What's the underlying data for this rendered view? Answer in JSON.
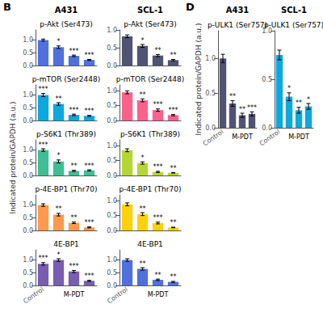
{
  "chart_data": [
    {
      "type": "bar",
      "title": "p-Akt (Ser473)",
      "subtitle": "A431",
      "annotations": [
        {
          "text": "B"
        }
      ],
      "categories": [
        null,
        null,
        null,
        null
      ],
      "values": [
        1.0,
        0.72,
        0.38,
        0.22
      ],
      "errors": [
        0.04,
        0.05,
        0.03,
        0.02
      ],
      "significance": [
        null,
        "*",
        "***",
        "***"
      ],
      "ylim": [
        0,
        1.4
      ],
      "yticks": [
        {
          "value": 0,
          "label": "0.0"
        },
        {
          "value": 0.5,
          "label": "0.5"
        },
        {
          "value": 1.0,
          "label": "1.0"
        }
      ],
      "grid": false,
      "tick_labels": "y"
    },
    {
      "type": "bar",
      "title": "p-Akt (Ser473)",
      "subtitle": "SCL-1",
      "categories": [
        null,
        null,
        null,
        null
      ],
      "values": [
        0.82,
        0.55,
        0.28,
        0.15
      ],
      "errors": [
        0.04,
        0.04,
        0.03,
        0.02
      ],
      "significance": [
        null,
        "*",
        "**",
        "**"
      ],
      "ylim": [
        0,
        1.0
      ],
      "yticks": [
        {
          "value": 0,
          "label": "0.0"
        },
        {
          "value": 0.5,
          "label": "0.5"
        },
        {
          "value": 1.0,
          "label": "1.0"
        }
      ],
      "grid": false,
      "tick_labels": "y"
    },
    {
      "type": "bar",
      "title": "p-mTOR (Ser2448)",
      "categories": [
        null,
        null,
        null,
        null
      ],
      "values": [
        1.0,
        0.65,
        0.22,
        0.18
      ],
      "errors": [
        0.06,
        0.05,
        0.03,
        0.02
      ],
      "significance": [
        "***",
        "**",
        "***",
        "***"
      ],
      "ylim": [
        0,
        1.4
      ],
      "yticks": [
        {
          "value": 0,
          "label": "0.0"
        },
        {
          "value": 0.5,
          "label": "0.5"
        },
        {
          "value": 1.0,
          "label": "1.0"
        }
      ],
      "grid": false,
      "tick_labels": "y"
    },
    {
      "type": "bar",
      "title": "p-mTOR (Ser2448)",
      "categories": [
        null,
        null,
        null,
        null
      ],
      "values": [
        0.95,
        0.68,
        0.35,
        0.18
      ],
      "errors": [
        0.05,
        0.05,
        0.04,
        0.02
      ],
      "significance": [
        null,
        "**",
        "***",
        "***"
      ],
      "ylim": [
        0,
        1.2
      ],
      "yticks": [
        {
          "value": 0,
          "label": "0.0"
        },
        {
          "value": 0.5,
          "label": "0.5"
        },
        {
          "value": 1.0,
          "label": "1.0"
        }
      ],
      "grid": false,
      "tick_labels": "y"
    },
    {
      "type": "bar",
      "title": "p-S6K1 (Thr389)",
      "ylabel": "Indicated protein/GAPDH (a.u.)",
      "categories": [
        null,
        null,
        null,
        null
      ],
      "values": [
        1.0,
        0.55,
        0.18,
        0.2
      ],
      "errors": [
        0.05,
        0.06,
        0.02,
        0.02
      ],
      "significance": [
        "***",
        "*",
        "**",
        "***"
      ],
      "ylim": [
        0,
        1.4
      ],
      "yticks": [
        {
          "value": 0,
          "label": "0.0"
        },
        {
          "value": 0.5,
          "label": "0.5"
        },
        {
          "value": 1.0,
          "label": "1.0"
        }
      ],
      "grid": false,
      "tick_labels": "y"
    },
    {
      "type": "bar",
      "title": "p-S6K1 (Thr389)",
      "categories": [
        null,
        null,
        null,
        null
      ],
      "values": [
        0.85,
        0.42,
        0.12,
        0.09
      ],
      "errors": [
        0.05,
        0.04,
        0.02,
        0.01
      ],
      "significance": [
        null,
        "*",
        "***",
        "**"
      ],
      "ylim": [
        0,
        1.2
      ],
      "yticks": [
        {
          "value": 0,
          "label": "0.0"
        },
        {
          "value": 0.5,
          "label": "0.5"
        },
        {
          "value": 1.0,
          "label": "1.0"
        }
      ],
      "grid": false,
      "tick_labels": "y"
    },
    {
      "type": "bar",
      "title": "p-4E-BP1 (Thr70)",
      "categories": [
        null,
        null,
        null,
        null
      ],
      "values": [
        1.0,
        0.62,
        0.3,
        0.12
      ],
      "errors": [
        0.05,
        0.05,
        0.03,
        0.02
      ],
      "significance": [
        null,
        "**",
        "**",
        "***"
      ],
      "ylim": [
        0,
        1.4
      ],
      "yticks": [
        {
          "value": 0,
          "label": "0.0"
        },
        {
          "value": 0.5,
          "label": "0.5"
        },
        {
          "value": 1.0,
          "label": "1.0"
        }
      ],
      "grid": false,
      "tick_labels": "y"
    },
    {
      "type": "bar",
      "title": "p-4E-BP1 (Thr70)",
      "categories": [
        null,
        null,
        null,
        null
      ],
      "values": [
        0.88,
        0.55,
        0.25,
        0.1
      ],
      "errors": [
        0.05,
        0.05,
        0.03,
        0.01
      ],
      "significance": [
        null,
        "**",
        "***",
        "**"
      ],
      "ylim": [
        0,
        1.2
      ],
      "yticks": [
        {
          "value": 0,
          "label": "0.0"
        },
        {
          "value": 0.5,
          "label": "0.5"
        },
        {
          "value": 1.0,
          "label": "1.0"
        }
      ],
      "grid": false,
      "tick_labels": "y"
    },
    {
      "type": "bar",
      "title": "4E-BP1",
      "annotations": [
        {
          "text": "M-PDT",
          "categories": [
            1,
            2,
            3
          ]
        }
      ],
      "categories": [
        "Control",
        null,
        null,
        null
      ],
      "values": [
        0.85,
        1.0,
        0.55,
        0.18
      ],
      "errors": [
        0.05,
        0.05,
        0.04,
        0.02
      ],
      "significance": [
        "***",
        "*",
        "***",
        "***"
      ],
      "ylim": [
        0,
        1.4
      ],
      "yticks": [
        {
          "value": 0,
          "label": "0.0"
        },
        {
          "value": 0.5,
          "label": "0.5"
        },
        {
          "value": 1.0,
          "label": "1.0"
        }
      ],
      "grid": false
    },
    {
      "type": "bar",
      "title": "4E-BP1",
      "annotations": [
        {
          "text": "M-PDT",
          "categories": [
            1,
            2,
            3
          ]
        }
      ],
      "categories": [
        "Control",
        null,
        null,
        null
      ],
      "values": [
        1.0,
        0.65,
        0.22,
        0.14
      ],
      "errors": [
        0.05,
        0.05,
        0.03,
        0.02
      ],
      "significance": [
        null,
        "**",
        "**",
        "**"
      ],
      "ylim": [
        0,
        1.4
      ],
      "yticks": [
        {
          "value": 0,
          "label": "0.0"
        },
        {
          "value": 0.5,
          "label": "0.5"
        },
        {
          "value": 1.0,
          "label": "1.0"
        }
      ],
      "grid": false
    },
    {
      "type": "bar",
      "title": "p-ULK1 (Ser757)",
      "subtitle": "A431",
      "ylabel": "Indicated protein/GAPDH (a.u.)",
      "annotations": [
        {
          "text": "D"
        },
        {
          "text": "M-PDT",
          "categories": [
            1,
            2,
            3
          ]
        }
      ],
      "categories": [
        "Control",
        null,
        null,
        null
      ],
      "values": [
        1.0,
        0.35,
        0.18,
        0.2
      ],
      "errors": [
        0.06,
        0.04,
        0.03,
        0.03
      ],
      "significance": [
        null,
        "**",
        "**",
        "***"
      ],
      "ylim": [
        0,
        1.4
      ],
      "yticks": [
        {
          "value": 0,
          "label": "0.0"
        },
        {
          "value": 0.5,
          "label": "0.5"
        },
        {
          "value": 1.0,
          "label": "1.0"
        }
      ],
      "grid": false
    },
    {
      "type": "bar",
      "title": "p-ULK1 (Ser757)",
      "subtitle": "SCL-1",
      "annotations": [
        {
          "text": "M-PDT",
          "categories": [
            1,
            2,
            3
          ]
        }
      ],
      "categories": [
        "Control",
        null,
        null,
        null
      ],
      "values": [
        0.75,
        0.32,
        0.18,
        0.22
      ],
      "errors": [
        0.05,
        0.04,
        0.03,
        0.03
      ],
      "significance": [
        null,
        "*",
        "**",
        "*"
      ],
      "ylim": [
        0,
        1.0
      ],
      "yticks": [
        {
          "value": 0,
          "label": "0.0"
        },
        {
          "value": 0.5,
          "label": "0.5"
        },
        {
          "value": 1.0,
          "label": "1.0"
        }
      ],
      "grid": false
    }
  ]
}
